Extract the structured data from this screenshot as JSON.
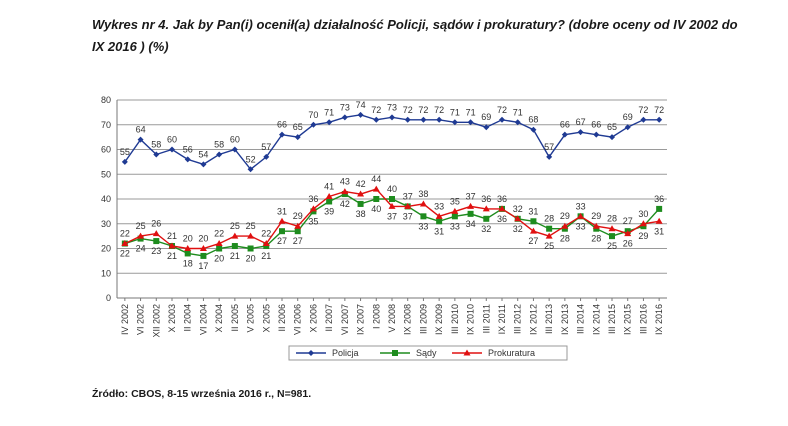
{
  "title": "Wykres nr 4. Jak by Pan(i) ocenił(a) działalność Policji, sądów i prokuratury? (dobre oceny od IV 2002 do IX 2016 ) (%)",
  "source": "Źródło: CBOS, 8-15 września 2016 r., N=981.",
  "chart_data": {
    "type": "line",
    "categories": [
      "IV 2002",
      "VI 2002",
      "XII 2002",
      "X 2003",
      "II 2004",
      "VI 2004",
      "X 2004",
      "II 2005",
      "V 2005",
      "X 2005",
      "II 2006",
      "VI 2006",
      "X 2006",
      "II 2007",
      "VI 2007",
      "IX 2007",
      "I 2008",
      "V 2008",
      "IX 2008",
      "III 2009",
      "IX 2009",
      "III 2010",
      "IX 2010",
      "III 2011",
      "IX 2011",
      "III 2012",
      "IX 2012",
      "III 2013",
      "IX 2013",
      "III 2014",
      "IX 2014",
      "III 2015",
      "IX 2015",
      "III 2016",
      "IX 2016"
    ],
    "ylim": [
      0,
      80
    ],
    "yticks": [
      0,
      10,
      20,
      30,
      40,
      50,
      60,
      70,
      80
    ],
    "grid": true,
    "legend_position": "bottom",
    "series": [
      {
        "name": "Policja",
        "color": "#1f3a93",
        "marker": "diamond",
        "values": [
          55,
          64,
          58,
          60,
          56,
          54,
          58,
          60,
          52,
          57,
          66,
          65,
          70,
          71,
          73,
          74,
          72,
          73,
          72,
          72,
          72,
          71,
          71,
          69,
          72,
          71,
          68,
          57,
          66,
          67,
          66,
          65,
          69,
          72,
          72
        ]
      },
      {
        "name": "Sądy",
        "color": "#1e8c1e",
        "marker": "square",
        "values": [
          22,
          24,
          23,
          21,
          18,
          17,
          20,
          21,
          20,
          21,
          27,
          27,
          35,
          39,
          42,
          38,
          40,
          40,
          37,
          33,
          31,
          33,
          34,
          32,
          36,
          32,
          31,
          28,
          28,
          33,
          28,
          25,
          27,
          29,
          36
        ]
      },
      {
        "name": "Prokuratura",
        "color": "#e01010",
        "marker": "triangle",
        "values": [
          22,
          25,
          26,
          21,
          20,
          20,
          22,
          25,
          25,
          22,
          31,
          29,
          36,
          41,
          43,
          42,
          44,
          37,
          37,
          38,
          33,
          35,
          37,
          36,
          36,
          32,
          27,
          25,
          29,
          33,
          29,
          28,
          26,
          30,
          31
        ]
      }
    ]
  }
}
